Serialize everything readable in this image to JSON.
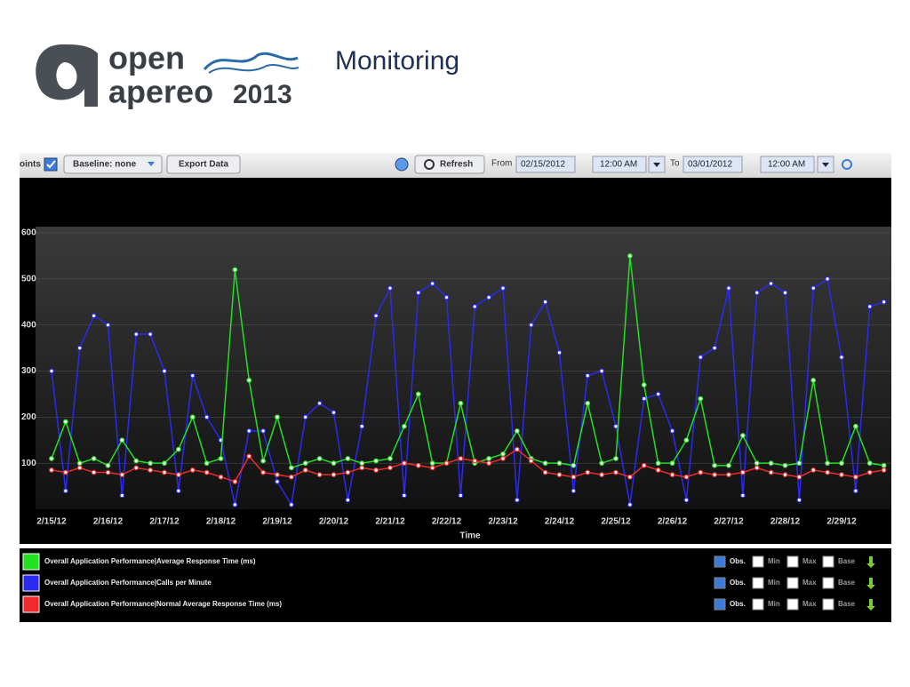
{
  "header": {
    "logo_top": "open",
    "logo_bottom": "apereo",
    "logo_year": "2013",
    "title": "Monitoring"
  },
  "toolbar": {
    "points": "oints",
    "baseline": "Baseline:  none",
    "export": "Export Data",
    "refresh": "Refresh",
    "from": "From",
    "from_date": "02/15/2012",
    "from_time": "12:00 AM",
    "to": "To",
    "to_date": "03/01/2012",
    "to_time": "12:00 AM"
  },
  "legend_options": [
    "Obs.",
    "Min",
    "Max",
    "Base"
  ],
  "chart_data": {
    "type": "line",
    "xlabel": "Time",
    "categories": [
      "2/15/12",
      null,
      null,
      null,
      "2/16/12",
      null,
      null,
      null,
      "2/17/12",
      null,
      null,
      null,
      "2/18/12",
      null,
      null,
      null,
      "2/19/12",
      null,
      null,
      null,
      "2/20/12",
      null,
      null,
      null,
      "2/21/12",
      null,
      null,
      null,
      "2/22/12",
      null,
      null,
      null,
      "2/23/12",
      null,
      null,
      null,
      "2/24/12",
      null,
      null,
      null,
      "2/25/12",
      null,
      null,
      null,
      "2/26/12",
      null,
      null,
      null,
      "2/27/12",
      null,
      null,
      null,
      "2/28/12",
      null,
      null,
      null,
      "2/29/12",
      null,
      null,
      null
    ],
    "ylim": [
      0,
      600
    ],
    "yticks": [
      100,
      200,
      300,
      400,
      500,
      600
    ],
    "series": [
      {
        "name": "Overall Application Performance|Average Response Time (ms)",
        "color": "#22e022",
        "values": [
          110,
          190,
          100,
          110,
          95,
          150,
          105,
          100,
          100,
          130,
          200,
          100,
          110,
          520,
          280,
          105,
          200,
          90,
          100,
          110,
          100,
          110,
          100,
          105,
          110,
          180,
          250,
          100,
          100,
          230,
          100,
          110,
          120,
          170,
          110,
          100,
          100,
          95,
          230,
          100,
          110,
          550,
          270,
          100,
          100,
          150,
          240,
          95,
          95,
          160,
          100,
          100,
          95,
          100,
          280,
          100,
          100,
          180,
          100,
          95
        ]
      },
      {
        "name": "Overall Application Performance|Calls per Minute",
        "color": "#2a2af0",
        "values": [
          300,
          40,
          350,
          420,
          400,
          30,
          380,
          380,
          300,
          40,
          290,
          200,
          150,
          10,
          170,
          170,
          60,
          10,
          200,
          230,
          210,
          20,
          180,
          420,
          480,
          30,
          470,
          490,
          460,
          30,
          440,
          460,
          480,
          20,
          400,
          450,
          340,
          40,
          290,
          300,
          180,
          10,
          240,
          250,
          170,
          20,
          330,
          350,
          480,
          30,
          470,
          490,
          470,
          20,
          480,
          500,
          330,
          40,
          440,
          450
        ]
      },
      {
        "name": "Overall Application Performance|Normal Average Response Time (ms)",
        "color": "#f02a2a",
        "values": [
          85,
          80,
          90,
          80,
          80,
          75,
          90,
          85,
          80,
          75,
          85,
          80,
          70,
          60,
          115,
          80,
          75,
          70,
          85,
          75,
          75,
          80,
          90,
          85,
          90,
          100,
          95,
          90,
          100,
          110,
          105,
          100,
          110,
          130,
          105,
          80,
          75,
          70,
          80,
          75,
          80,
          70,
          95,
          85,
          75,
          70,
          80,
          75,
          75,
          80,
          90,
          80,
          75,
          70,
          85,
          80,
          75,
          70,
          80,
          85
        ]
      }
    ]
  }
}
